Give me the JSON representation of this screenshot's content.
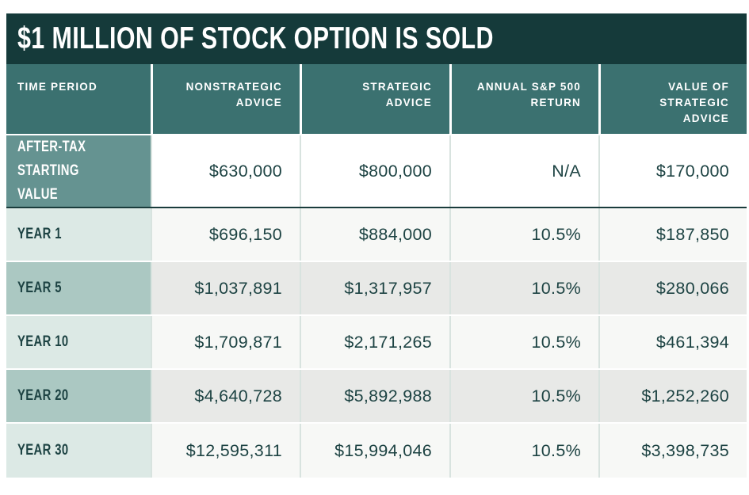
{
  "chart_data": {
    "type": "table",
    "title": "$1 MILLION OF STOCK OPTION IS SOLD",
    "columns": [
      "TIME PERIOD",
      "NONSTRATEGIC ADVICE",
      "STRATEGIC ADVICE",
      "ANNUAL S&P 500 RETURN",
      "VALUE OF STRATEGIC ADVICE"
    ],
    "rows": [
      {
        "label": "AFTER-TAX\nSTARTING VALUE",
        "values": [
          "$630,000",
          "$800,000",
          "N/A",
          "$170,000"
        ]
      },
      {
        "label": "YEAR 1",
        "values": [
          "$696,150",
          "$884,000",
          "10.5%",
          "$187,850"
        ]
      },
      {
        "label": "YEAR 5",
        "values": [
          "$1,037,891",
          "$1,317,957",
          "10.5%",
          "$280,066"
        ]
      },
      {
        "label": "YEAR 10",
        "values": [
          "$1,709,871",
          "$2,171,265",
          "10.5%",
          "$461,394"
        ]
      },
      {
        "label": "YEAR 20",
        "values": [
          "$4,640,728",
          "$5,892,988",
          "10.5%",
          "$1,252,260"
        ]
      },
      {
        "label": "YEAR 30",
        "values": [
          "$12,595,311",
          "$15,994,046",
          "10.5%",
          "$3,398,735"
        ]
      }
    ],
    "colors": {
      "title_bar_bg": "#153a3a",
      "header_bg": "#3b7170",
      "aftertax_label_bg": "#659391",
      "year_label_light_bg": "#dce9e5",
      "year_label_medium_bg": "#abc8c2",
      "data_row_light_bg": "#f7f8f6",
      "data_row_gray_bg": "#e8e9e7",
      "dark_rule": "#1a3c3c",
      "text_dark": "#1d4343"
    }
  }
}
